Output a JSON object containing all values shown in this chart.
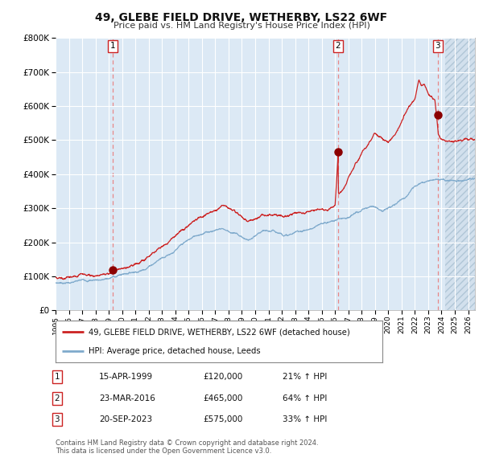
{
  "title": "49, GLEBE FIELD DRIVE, WETHERBY, LS22 6WF",
  "subtitle": "Price paid vs. HM Land Registry's House Price Index (HPI)",
  "legend_line1": "49, GLEBE FIELD DRIVE, WETHERBY, LS22 6WF (detached house)",
  "legend_line2": "HPI: Average price, detached house, Leeds",
  "transactions": [
    {
      "label": "1",
      "date": "15-APR-1999",
      "price": 120000,
      "pct": "21%",
      "x_year": 1999.29
    },
    {
      "label": "2",
      "date": "23-MAR-2016",
      "price": 465000,
      "pct": "64%",
      "x_year": 2016.23
    },
    {
      "label": "3",
      "date": "20-SEP-2023",
      "price": 575000,
      "pct": "33%",
      "x_year": 2023.72
    }
  ],
  "footnote1": "Contains HM Land Registry data © Crown copyright and database right 2024.",
  "footnote2": "This data is licensed under the Open Government Licence v3.0.",
  "table_rows": [
    {
      "num": "1",
      "date": "15-APR-1999",
      "price": "£120,000",
      "pct": "21% ↑ HPI"
    },
    {
      "num": "2",
      "date": "23-MAR-2016",
      "price": "£465,000",
      "pct": "64% ↑ HPI"
    },
    {
      "num": "3",
      "date": "20-SEP-2023",
      "price": "£575,000",
      "pct": "33% ↑ HPI"
    }
  ],
  "ylim": [
    0,
    800000
  ],
  "xlim_start": 1995.0,
  "xlim_end": 2026.5,
  "bg_color": "#dce9f5",
  "hatch_color": "#adc4d8",
  "grid_color": "#ffffff",
  "hpi_color": "#7faacc",
  "property_color": "#cc2222",
  "dot_color": "#8b0000",
  "dashed_color": "#e88888",
  "hatch_start": 2024.3
}
